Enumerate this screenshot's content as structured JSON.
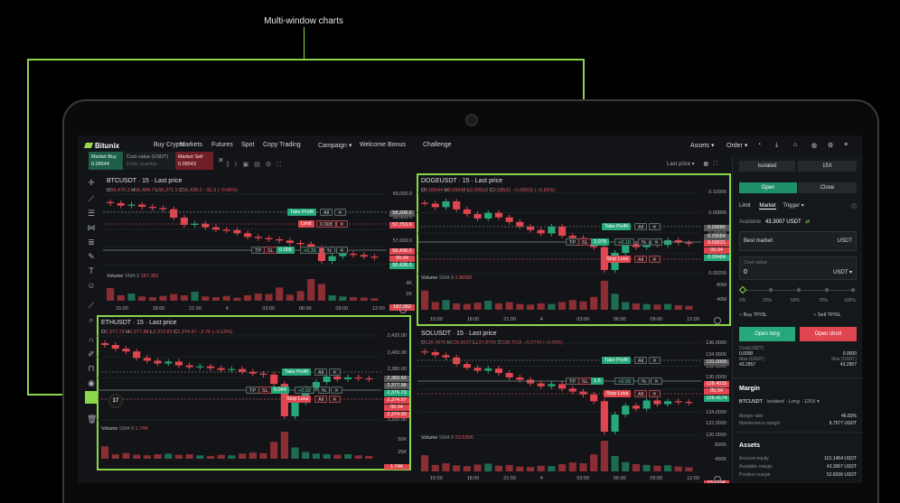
{
  "callout": {
    "title": "Multi-window charts"
  },
  "nav": {
    "logo": "Bitunix",
    "items": [
      "Buy Crypto",
      "Markets",
      "Futures",
      "Spot",
      "Copy Trading",
      "Campaign ▾",
      "Welcome Bonus",
      "Challenge"
    ],
    "assets": "Assets ▾",
    "order": "Order ▾"
  },
  "quick": {
    "buy_label": "Market Buy",
    "buy_value": "0.09544",
    "cost_label": "Cost value (USDT)",
    "cost_placeholder": "Enter quantity",
    "sell_label": "Market Sell",
    "sell_value": "0.09543",
    "close": "✕"
  },
  "toolbar": {
    "last_price": "Last price ▾"
  },
  "charts": [
    {
      "title": "BTCUSDT · 15 · Last price",
      "ohlc": {
        "o": "56,470.3",
        "h": "56,484.7",
        "l": "56,371.5",
        "c": "56,438.0",
        "chg": "−32.3 (−0.06%)"
      },
      "prices": [
        "59,000.0",
        "58,000.0",
        "57,000.0",
        "56,000.0"
      ],
      "tags": {
        "take_profit": "Take Profit",
        "limit": "Limit",
        "limit_qty": "0.008",
        "all": "All",
        "tp": "TP",
        "sl": "SL",
        "pos_qty": "0.008",
        "pos_pnl": "+0.35",
        "pct": "%"
      },
      "pills": [
        "58,208.0",
        "57,753.0",
        "56,438.0",
        "05:34",
        "56,438.0"
      ],
      "volume": {
        "label": "Volume",
        "sma": "SMA 9",
        "value": "187.382"
      },
      "vol_ticks": [
        "4K",
        "2K"
      ],
      "vol_pill": "187.382",
      "times": [
        "15:00",
        "18:00",
        "21:00",
        "4",
        "03:00",
        "06:00",
        "09:00",
        "12:00"
      ],
      "closes": [
        58700,
        58600,
        58640,
        58550,
        58500,
        58450,
        58100,
        57800,
        57850,
        57700,
        57600,
        57580,
        57450,
        57300,
        57250,
        57200,
        57150,
        57050,
        57000,
        56850,
        56300,
        56500,
        56600,
        56550,
        56480,
        56438
      ],
      "volumes": [
        2100,
        900,
        1200,
        700,
        600,
        800,
        1100,
        900,
        1500,
        700,
        600,
        800,
        500,
        900,
        1200,
        1100,
        2200,
        1000,
        1600,
        3600,
        2800,
        900,
        700,
        600,
        500,
        400
      ]
    },
    {
      "title": "DOGEUSDT · 15 · Last price",
      "ohlc": {
        "o": "0.09544",
        "h": "0.09548",
        "l": "0.09516",
        "c": "0.09531",
        "chg": "−0.00015 (−0.16%)"
      },
      "prices": [
        "0.10000",
        "0.09800",
        "0.09600",
        "0.09400",
        "0.09200"
      ],
      "tags": {
        "take_profit": "Take Profit",
        "stop_loss": "Stop Loss",
        "all": "All",
        "tp": "TP",
        "sl": "SL",
        "pos_qty": "2,078",
        "pos_pnl": "+0.16",
        "pct": "%"
      },
      "pills": [
        "0.09680",
        "0.09584",
        "0.09531",
        "05:34",
        "0.09484"
      ],
      "volume": {
        "label": "Volume",
        "sma": "SMA 9",
        "value": "2.869M"
      },
      "vol_ticks": [
        "80M",
        "40M"
      ],
      "times": [
        "15:00",
        "18:00",
        "21:00",
        "4",
        "03:00",
        "06:00",
        "09:00",
        "12:00"
      ],
      "closes": [
        0.0988,
        0.0985,
        0.099,
        0.0983,
        0.0979,
        0.0975,
        0.098,
        0.0976,
        0.0972,
        0.0968,
        0.0965,
        0.0962,
        0.0968,
        0.096,
        0.0958,
        0.0955,
        0.095,
        0.093,
        0.0945,
        0.0953,
        0.095,
        0.0955,
        0.0952,
        0.0956,
        0.0954,
        0.0953
      ],
      "volumes": [
        30,
        12,
        15,
        10,
        9,
        11,
        14,
        10,
        12,
        9,
        8,
        10,
        9,
        12,
        15,
        13,
        20,
        45,
        25,
        12,
        10,
        9,
        8,
        9,
        7,
        6
      ]
    },
    {
      "title": "ETHUSDT · 15 · Last price",
      "ohlc": {
        "o": "2,377.73",
        "h": "2,377.88",
        "l": "2,372.83",
        "c": "2,374.97",
        "chg": "−2.76 (−0.12%)"
      },
      "prices": [
        "2,420.00",
        "2,400.00",
        "2,380.00",
        "2,360.00",
        "2,340.00",
        "2,320.00"
      ],
      "tags": {
        "take_profit": "Take Profit",
        "stop_loss": "Stop Loss",
        "all": "All",
        "tp": "TP",
        "sl": "SL",
        "pos_qty": "0.044",
        "pos_pnl": "+0.02",
        "pct": "%"
      },
      "pills": [
        "2,383.60",
        "2,377.98",
        "2,376.73",
        "2,374.97",
        "05:34",
        "2,374.30"
      ],
      "volume": {
        "label": "Volume",
        "sma": "SMA 9",
        "value": "1.74K"
      },
      "vol_ticks": [
        "50K",
        "25K"
      ],
      "vol_pill": "1.74K",
      "times": [
        "15:00",
        "18:00",
        "21:00",
        "4",
        "03:00",
        "06:00",
        "09:00",
        "12:00"
      ],
      "closes": [
        2412,
        2408,
        2405,
        2398,
        2395,
        2392,
        2394,
        2390,
        2388,
        2389,
        2387,
        2385,
        2386,
        2383,
        2381,
        2380,
        2370,
        2335,
        2350,
        2365,
        2372,
        2378,
        2375,
        2377,
        2376,
        2375
      ],
      "volumes": [
        22,
        8,
        10,
        7,
        6,
        8,
        9,
        7,
        8,
        6,
        5,
        7,
        6,
        9,
        11,
        10,
        30,
        48,
        20,
        12,
        9,
        8,
        7,
        8,
        6,
        5
      ]
    },
    {
      "title": "SOLUSDT · 15 · Last price",
      "ohlc": {
        "o": "128.4975",
        "h": "128.6627",
        "l": "127.8700",
        "c": "128.4015",
        "chg": "−0.0740 (−0.06%)"
      },
      "prices": [
        "136.0000",
        "134.0000",
        "132.0000",
        "130.0000",
        "128.0000",
        "126.0000",
        "124.0000",
        "122.0000",
        "120.0000"
      ],
      "tags": {
        "take_profit": "Take Profit",
        "stop_loss": "Stop Loss",
        "all": "All",
        "tp": "TP",
        "sl": "SL",
        "pos_qty": "1.6",
        "pos_pnl": "+0.09",
        "pct": "%"
      },
      "pills": [
        "131.0000",
        "128.4015",
        "05:34",
        "126.4174"
      ],
      "volume": {
        "label": "Volume",
        "sma": "SMA 9",
        "value": "23.635K"
      },
      "vol_ticks": [
        "800K",
        "400K"
      ],
      "vol_pill": "23.635K",
      "times": [
        "15:00",
        "18:00",
        "21:00",
        "4",
        "03:00",
        "06:00",
        "09:00",
        "12:00"
      ],
      "closes": [
        135.2,
        134.8,
        134.5,
        133.6,
        133.1,
        132.7,
        133.0,
        132.4,
        131.8,
        131.5,
        131.0,
        130.6,
        130.9,
        130.3,
        129.9,
        129.5,
        128.6,
        124.5,
        126.8,
        128.0,
        127.6,
        128.7,
        128.2,
        128.6,
        128.5,
        128.4
      ],
      "volumes": [
        400,
        160,
        200,
        150,
        130,
        170,
        190,
        140,
        160,
        120,
        110,
        140,
        130,
        180,
        220,
        200,
        420,
        760,
        380,
        230,
        180,
        160,
        140,
        150,
        120,
        100
      ]
    }
  ],
  "order": {
    "margin_mode": "Isolated",
    "leverage": "15X",
    "open": "Open",
    "close": "Close",
    "tabs": [
      "Limit",
      "Market",
      "Trigger ▾"
    ],
    "available_label": "Available",
    "available_value": "43.3007 USDT",
    "best_market": "Best market",
    "usdt": "USDT",
    "cost_label": "Cost value",
    "cost_value": "0",
    "usdt_dd": "USDT ▾",
    "slider": [
      "0%",
      "25%",
      "50%",
      "75%",
      "100%"
    ],
    "buy_tpsl": "Buy TP/SL",
    "sell_tpsl": "Sell TP/SL",
    "open_long": "Open long",
    "open_short": "Open short",
    "cost_usdt": "Cost(USDT)",
    "cost_long": "0.0000",
    "cost_short": "0.0000",
    "max_usdt": "Max (USDT)",
    "max_long": "43.2957",
    "max_short": "43.2957",
    "margin_title": "Margin",
    "margin_pair": "BTCUSDT",
    "margin_mode_desc": "Isolated · Long · 125X ▾",
    "margin_ratio": "Margin ratio",
    "margin_ratio_val": "46.83%",
    "maint_margin": "Maintenance margin",
    "maint_margin_val": "8.7577 USDT",
    "assets_title": "Assets",
    "account_equity": "Account equity",
    "account_equity_val": "101.1454 USDT",
    "available_margin": "Available margin",
    "available_margin_val": "43.3007 USDT",
    "position_margin": "Position margin",
    "position_margin_val": "52.6036 USDT"
  },
  "colors": {
    "accent": "#8bd64a",
    "up": "#27a87a",
    "down": "#e0464f",
    "bg": "#121417"
  }
}
